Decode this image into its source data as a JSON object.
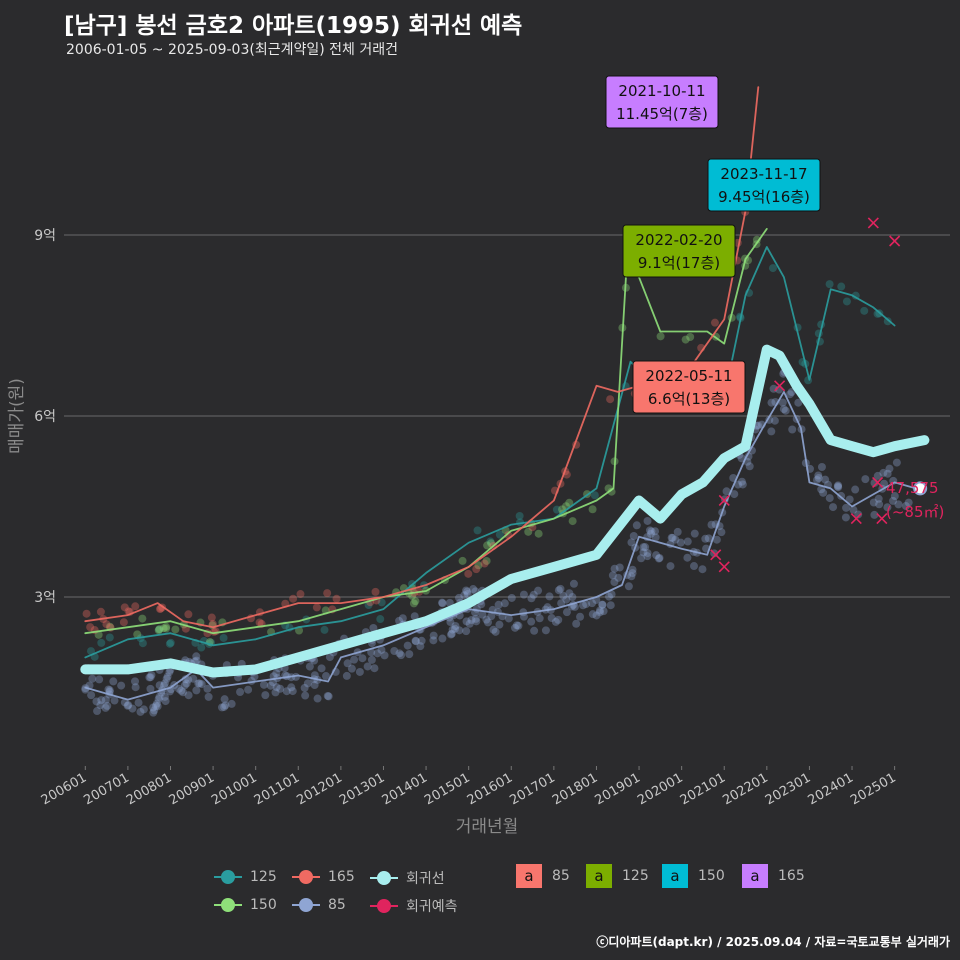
{
  "title": "[남구] 봉선 금호2 아파트(1995) 회귀선 예측",
  "subtitle": "2006-01-05 ~ 2025-09-03(최근계약일) 전체 거래건",
  "footer": "ⓒ디아파트(dapt.kr) / 2025.09.04 / 자료=국토교통부 실거래가",
  "end_label": {
    "value": "47,575",
    "area": "(~85㎡)"
  },
  "chart_data": {
    "type": "line",
    "title": "[남구] 봉선 금호2 아파트(1995) 회귀선 예측",
    "xlabel": "거래년월",
    "ylabel": "매매가(원)",
    "xlim": [
      "2006-01",
      "2025-09"
    ],
    "ylim": [
      0.2,
      11.8
    ],
    "y_ticks": [
      {
        "value": 3,
        "label": "3억"
      },
      {
        "value": 6,
        "label": "6억"
      },
      {
        "value": 9,
        "label": "9억"
      }
    ],
    "x_ticks": [
      "200601",
      "200701",
      "200801",
      "200901",
      "201001",
      "201101",
      "201201",
      "201301",
      "201401",
      "201501",
      "201601",
      "201701",
      "201801",
      "201901",
      "202001",
      "202101",
      "202201",
      "202301",
      "202401",
      "202501"
    ],
    "grid": true,
    "colors": {
      "s85": "#8fa5d3",
      "s125": "#2a9d9f",
      "s150": "#8fe07a",
      "s165": "#f06a62",
      "regression": "#a8eeee",
      "prediction": "#e0245e"
    },
    "series": [
      {
        "name": "85",
        "color": "#8fa5d3",
        "x": [
          2006.0,
          2007.0,
          2008.0,
          2008.6,
          2009.0,
          2010.0,
          2011.0,
          2011.7,
          2012.0,
          2013.0,
          2014.0,
          2015.0,
          2016.0,
          2017.0,
          2018.0,
          2018.6,
          2019.0,
          2020.0,
          2020.6,
          2021.0,
          2021.5,
          2021.9,
          2022.4,
          2022.8,
          2023.0,
          2023.5,
          2024.0,
          2024.5,
          2025.0,
          2025.5
        ],
        "values": [
          1.5,
          1.3,
          1.5,
          1.8,
          1.5,
          1.6,
          1.7,
          1.6,
          2.0,
          2.2,
          2.5,
          2.8,
          2.7,
          2.8,
          3.0,
          3.2,
          4.0,
          3.8,
          3.7,
          4.5,
          5.3,
          5.8,
          6.4,
          5.8,
          4.9,
          4.8,
          4.5,
          4.7,
          4.9,
          4.8
        ]
      },
      {
        "name": "125",
        "color": "#2a9d9f",
        "x": [
          2006.0,
          2007.0,
          2008.0,
          2009.0,
          2010.0,
          2011.0,
          2012.0,
          2013.0,
          2014.0,
          2015.0,
          2016.0,
          2017.0,
          2018.0,
          2018.8,
          2019.5,
          2020.5,
          2021.0,
          2021.5,
          2022.0,
          2022.4,
          2023.0,
          2023.5,
          2024.0,
          2024.5,
          2025.0
        ],
        "values": [
          2.0,
          2.3,
          2.4,
          2.2,
          2.3,
          2.5,
          2.6,
          2.8,
          3.4,
          3.9,
          4.2,
          4.3,
          4.8,
          6.9,
          6.4,
          6.3,
          6.3,
          8.0,
          8.8,
          8.3,
          6.6,
          8.1,
          8.0,
          7.8,
          7.5
        ]
      },
      {
        "name": "150",
        "color": "#8fe07a",
        "x": [
          2006.0,
          2007.0,
          2008.0,
          2009.0,
          2010.0,
          2011.0,
          2012.0,
          2013.0,
          2014.0,
          2015.0,
          2016.0,
          2017.0,
          2018.0,
          2018.4,
          2018.7,
          2019.0,
          2019.5,
          2020.0,
          2020.6,
          2021.0,
          2021.5,
          2022.0
        ],
        "values": [
          2.4,
          2.5,
          2.6,
          2.4,
          2.5,
          2.6,
          2.8,
          3.0,
          3.1,
          3.5,
          4.1,
          4.3,
          4.6,
          4.8,
          8.4,
          8.3,
          7.4,
          7.4,
          7.4,
          7.2,
          8.6,
          9.1
        ]
      },
      {
        "name": "165",
        "color": "#f06a62",
        "x": [
          2006.0,
          2007.0,
          2007.7,
          2008.3,
          2009.0,
          2010.0,
          2011.0,
          2012.0,
          2013.0,
          2014.0,
          2015.0,
          2016.0,
          2017.0,
          2018.0,
          2018.5,
          2019.0,
          2020.0,
          2021.0,
          2021.5,
          2021.8
        ],
        "values": [
          2.6,
          2.7,
          2.9,
          2.6,
          2.5,
          2.7,
          2.9,
          2.9,
          3.0,
          3.2,
          3.5,
          4.0,
          4.6,
          6.5,
          6.4,
          6.5,
          6.6,
          7.6,
          9.4,
          11.45
        ]
      },
      {
        "name": "회귀선",
        "color": "#a8eeee",
        "x": [
          2006.0,
          2007.0,
          2008.0,
          2009.0,
          2010.0,
          2011.0,
          2012.0,
          2013.0,
          2014.0,
          2015.0,
          2016.0,
          2017.0,
          2018.0,
          2019.0,
          2019.5,
          2020.0,
          2020.5,
          2021.0,
          2021.5,
          2022.0,
          2022.3,
          2022.7,
          2023.0,
          2023.5,
          2024.0,
          2024.5,
          2025.0,
          2025.7
        ],
        "values": [
          1.8,
          1.8,
          1.9,
          1.75,
          1.8,
          2.0,
          2.2,
          2.4,
          2.6,
          2.9,
          3.3,
          3.5,
          3.7,
          4.6,
          4.3,
          4.7,
          4.9,
          5.3,
          5.5,
          7.1,
          7.0,
          6.5,
          6.2,
          5.6,
          5.5,
          5.4,
          5.5,
          5.6
        ]
      }
    ],
    "prediction_points": [
      {
        "x": 2020.8,
        "y": 3.7
      },
      {
        "x": 2021.0,
        "y": 3.5
      },
      {
        "x": 2021.0,
        "y": 4.6
      },
      {
        "x": 2022.3,
        "y": 6.5
      },
      {
        "x": 2024.1,
        "y": 4.3
      },
      {
        "x": 2024.6,
        "y": 4.9
      },
      {
        "x": 2024.7,
        "y": 4.3
      },
      {
        "x": 2024.5,
        "y": 9.2
      },
      {
        "x": 2025.0,
        "y": 8.9
      }
    ],
    "end_point": {
      "x": 2025.6,
      "y": 4.8
    },
    "callouts": [
      {
        "label": "2021-10-11",
        "text": "11.45억(7층)",
        "color": "#c77dff",
        "x": 2021.8,
        "y": 11.45
      },
      {
        "label": "2023-11-17",
        "text": "9.45억(16층)",
        "color": "#00bcd4",
        "x": 2023.9,
        "y": 9.45
      },
      {
        "label": "2022-02-20",
        "text": "9.1억(17층)",
        "color": "#7cae00",
        "x": 2022.1,
        "y": 9.1
      },
      {
        "label": "2022-05-11",
        "text": "6.6억(13층)",
        "color": "#f8766d",
        "x": 2022.4,
        "y": 6.6
      }
    ],
    "legend": {
      "placement": "bottom",
      "lines": [
        {
          "label": "125",
          "color": "#2a9d9f"
        },
        {
          "label": "165",
          "color": "#f06a62"
        },
        {
          "label": "회귀선",
          "color": "#a8eeee"
        },
        {
          "label": "150",
          "color": "#8fe07a"
        },
        {
          "label": "85",
          "color": "#8fa5d3"
        },
        {
          "label": "회귀예측",
          "color": "#e0245e"
        }
      ],
      "boxes": [
        {
          "symbol": "a",
          "label": "85",
          "color": "#f8766d"
        },
        {
          "symbol": "a",
          "label": "125",
          "color": "#7cae00"
        },
        {
          "symbol": "a",
          "label": "150",
          "color": "#00bcd4"
        },
        {
          "symbol": "a",
          "label": "165",
          "color": "#c77dff"
        }
      ]
    }
  }
}
